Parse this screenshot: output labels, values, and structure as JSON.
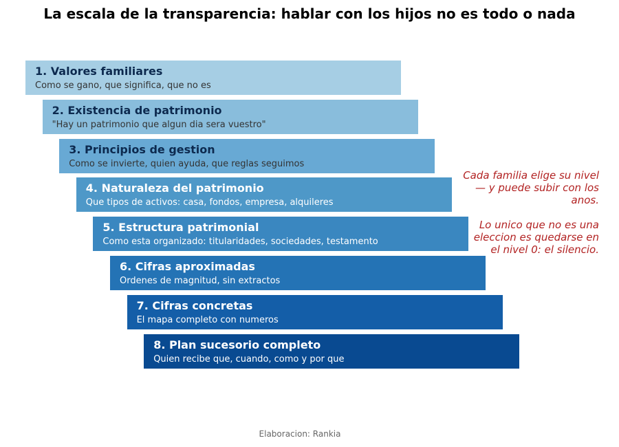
{
  "title": "La escala de la transparencia: hablar con los hijos no es todo o nada",
  "steps": [
    {
      "title": "1. Valores familiares",
      "desc": "Como se gano, que significa, que no es",
      "color": "#a6cee4",
      "text_color": "#0d2a4f",
      "desc_color": "#333333"
    },
    {
      "title": "2. Existencia de patrimonio",
      "desc": "\"Hay un patrimonio que algun dia sera vuestro\"",
      "color": "#89bddc",
      "text_color": "#0d2a4f",
      "desc_color": "#333333"
    },
    {
      "title": "3. Principios de gestion",
      "desc": "Como se invierte, quien ayuda, que reglas seguimos",
      "color": "#68a9d4",
      "text_color": "#0d2a4f",
      "desc_color": "#333333"
    },
    {
      "title": "4. Naturaleza del patrimonio",
      "desc": "Que tipos de activos: casa, fondos, empresa, alquileres",
      "color": "#4e98c8",
      "text_color": "#ffffff",
      "desc_color": "#ffffff"
    },
    {
      "title": "5. Estructura patrimonial",
      "desc": "Como esta organizado: titularidades, sociedades, testamento",
      "color": "#3a87c0",
      "text_color": "#ffffff",
      "desc_color": "#ffffff"
    },
    {
      "title": "6. Cifras aproximadas",
      "desc": "Ordenes de magnitud, sin extractos",
      "color": "#2473b5",
      "text_color": "#ffffff",
      "desc_color": "#ffffff"
    },
    {
      "title": "7. Cifras concretas",
      "desc": "El mapa completo con numeros",
      "color": "#145ea8",
      "text_color": "#ffffff",
      "desc_color": "#ffffff"
    },
    {
      "title": "8. Plan sucesorio completo",
      "desc": "Quien recibe que, cuando, como y por que",
      "color": "#094a91",
      "text_color": "#ffffff",
      "desc_color": "#ffffff"
    }
  ],
  "notes": {
    "note1": "Cada familia elige su nivel — y puede subir con los anos.",
    "note2": "Lo unico que no es una eleccion es quedarse en el nivel 0: el silencio."
  },
  "source": "Elaboracion: Rankia"
}
